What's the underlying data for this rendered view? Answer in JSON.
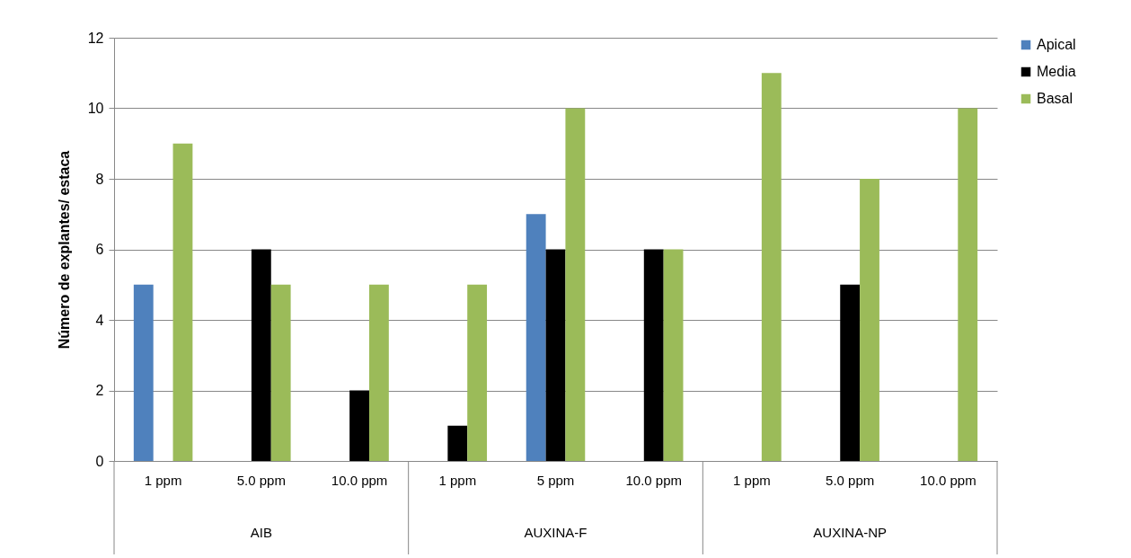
{
  "chart_data": {
    "type": "bar",
    "ylabel": "Número de explantes/ estaca",
    "categories": [
      "1 ppm",
      "5.0 ppm",
      "10.0 ppm",
      "1 ppm",
      "5 ppm",
      "10.0 ppm",
      "1 ppm",
      "5.0 ppm",
      "10.0 ppm"
    ],
    "annotations": [
      "AIB",
      "AUXINA-F",
      "AUXINA-NP"
    ],
    "series": [
      {
        "name": "Apical",
        "color": "#4f81bd",
        "values": [
          5,
          0,
          0,
          0,
          7,
          0,
          0,
          0,
          0
        ]
      },
      {
        "name": "Media",
        "color": "#000000",
        "values": [
          0,
          6,
          2,
          1,
          6,
          6,
          0,
          5,
          0
        ]
      },
      {
        "name": "Basal",
        "color": "#9bbb59",
        "values": [
          9,
          5,
          5,
          5,
          10,
          6,
          11,
          8,
          10
        ]
      }
    ],
    "ylim": [
      0,
      12
    ],
    "yticks": [
      0,
      2,
      4,
      6,
      8,
      10,
      12
    ],
    "grid": "y",
    "legend": "right"
  }
}
